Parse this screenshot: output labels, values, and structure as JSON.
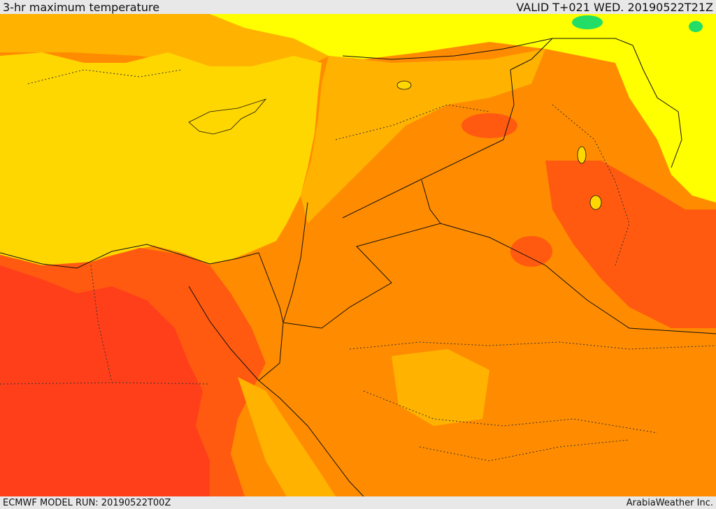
{
  "header": {
    "title": "3-hr maximum temperature",
    "valid_time": "VALID T+021 WED. 20190522T21Z"
  },
  "footer": {
    "model_run": "ECMWF MODEL RUN: 20190522T00Z",
    "credit": "ArabiaWeather Inc."
  },
  "colors": {
    "sea": "#ffd700",
    "cool": "#ffff00",
    "mild": "#ffb300",
    "warm": "#ff8c00",
    "hot": "#ff5a10",
    "hotter": "#ff3f1a",
    "cold_patch": "#22dd66",
    "border": "#111111"
  }
}
